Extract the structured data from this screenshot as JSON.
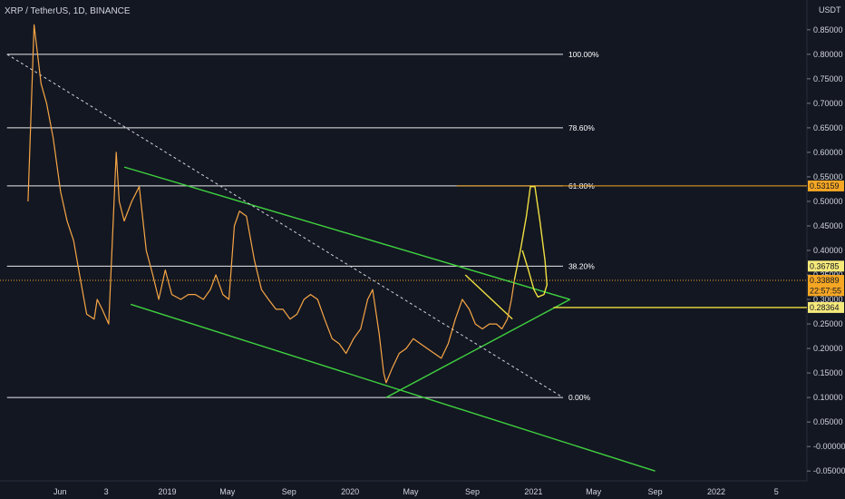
{
  "chart_data": {
    "type": "line",
    "title": "XRP / TetherUS, 1D, BINANCE",
    "price_scale_unit": "USDT",
    "ylim": [
      -0.07,
      0.87
    ],
    "y_ticks": [
      0.85,
      0.8,
      0.75,
      0.7,
      0.65,
      0.6,
      0.55,
      0.5,
      0.45,
      0.4,
      0.35,
      0.3,
      0.25,
      0.2,
      0.15,
      0.1,
      0.05,
      -0.0,
      -0.05
    ],
    "y_tick_labels": [
      "0.85000",
      "0.80000",
      "0.75000",
      "0.70000",
      "0.65000",
      "0.60000",
      "0.55000",
      "0.50000",
      "0.45000",
      "0.40000",
      "0.35000",
      "0.30000",
      "0.25000",
      "0.20000",
      "0.15000",
      "0.10000",
      "0.05000",
      "-0.00000",
      "-0.05000"
    ],
    "x_ticks": [
      "2018-06-01",
      "2018-09-01",
      "2019-01-01",
      "2019-05-01",
      "2019-09-01",
      "2020-01-01",
      "2020-05-01",
      "2020-09-01",
      "2021-01-01",
      "2021-05-01",
      "2021-09-01",
      "2022-01-01",
      "2022-05-01"
    ],
    "x_tick_labels": [
      "Jun",
      "3",
      "2019",
      "May",
      "Sep",
      "2020",
      "May",
      "Sep",
      "2021",
      "May",
      "Sep",
      "2022",
      "5"
    ],
    "xlim": [
      "2018-02-01",
      "2022-07-01"
    ],
    "price_series": {
      "name": "",
      "x": [
        "2018-03-29",
        "2018-04-10",
        "2018-04-24",
        "2018-05-05",
        "2018-05-18",
        "2018-06-02",
        "2018-06-15",
        "2018-06-28",
        "2018-07-10",
        "2018-07-24",
        "2018-08-08",
        "2018-08-14",
        "2018-08-24",
        "2018-09-06",
        "2018-09-21",
        "2018-09-27",
        "2018-10-07",
        "2018-10-22",
        "2018-11-06",
        "2018-11-20",
        "2018-12-03",
        "2018-12-15",
        "2018-12-28",
        "2019-01-10",
        "2019-01-28",
        "2019-02-12",
        "2019-02-26",
        "2019-03-14",
        "2019-03-28",
        "2019-04-08",
        "2019-04-22",
        "2019-05-04",
        "2019-05-15",
        "2019-05-25",
        "2019-06-08",
        "2019-06-24",
        "2019-07-08",
        "2019-07-22",
        "2019-08-06",
        "2019-08-20",
        "2019-09-03",
        "2019-09-17",
        "2019-10-01",
        "2019-10-14",
        "2019-10-28",
        "2019-11-11",
        "2019-11-26",
        "2019-12-10",
        "2019-12-24",
        "2020-01-08",
        "2020-01-22",
        "2020-02-05",
        "2020-02-15",
        "2020-02-28",
        "2020-03-08",
        "2020-03-13",
        "2020-03-25",
        "2020-04-08",
        "2020-04-22",
        "2020-05-06",
        "2020-05-20",
        "2020-06-03",
        "2020-06-17",
        "2020-07-01",
        "2020-07-15",
        "2020-07-29",
        "2020-08-12",
        "2020-08-26",
        "2020-09-07",
        "2020-09-21",
        "2020-10-05",
        "2020-10-19",
        "2020-10-30",
        "2020-11-10",
        "2020-11-18",
        "2020-11-24"
      ],
      "y": [
        0.5,
        0.86,
        0.74,
        0.7,
        0.63,
        0.52,
        0.46,
        0.42,
        0.35,
        0.27,
        0.26,
        0.3,
        0.28,
        0.25,
        0.6,
        0.5,
        0.46,
        0.5,
        0.53,
        0.4,
        0.35,
        0.3,
        0.36,
        0.31,
        0.3,
        0.31,
        0.31,
        0.3,
        0.32,
        0.35,
        0.31,
        0.3,
        0.45,
        0.48,
        0.47,
        0.38,
        0.32,
        0.3,
        0.28,
        0.28,
        0.26,
        0.27,
        0.3,
        0.31,
        0.3,
        0.26,
        0.22,
        0.21,
        0.19,
        0.22,
        0.24,
        0.3,
        0.32,
        0.23,
        0.15,
        0.13,
        0.16,
        0.19,
        0.2,
        0.22,
        0.21,
        0.2,
        0.19,
        0.18,
        0.21,
        0.26,
        0.3,
        0.28,
        0.25,
        0.24,
        0.25,
        0.25,
        0.24,
        0.26,
        0.3,
        0.34
      ],
      "color": "#f7a645"
    },
    "fib_levels": [
      {
        "label": "100.00%",
        "price": 0.8
      },
      {
        "label": "78.60%",
        "price": 0.65
      },
      {
        "label": "61.80%",
        "price": 0.5315
      },
      {
        "label": "38.20%",
        "price": 0.3679
      },
      {
        "label": "0.00%",
        "price": 0.1
      }
    ],
    "price_tags": [
      {
        "label": "0.53159",
        "price": 0.5315,
        "color": "#f5a623"
      },
      {
        "label": "0.36785",
        "price": 0.3679,
        "color": "#f5e97a"
      },
      {
        "label": "0.33889",
        "price": 0.3389,
        "color": "#f5a623"
      },
      {
        "label": "22:57:55",
        "price": 0.318,
        "color": "#f5a623"
      },
      {
        "label": "0.28364",
        "price": 0.2836,
        "color": "#f5e97a"
      }
    ],
    "trendlines": [
      {
        "name": "channel-top",
        "color": "#3fd13f",
        "points": [
          [
            "2018-10-07",
            0.57
          ],
          [
            "2021-03-15",
            0.3
          ]
        ]
      },
      {
        "name": "channel-bottom",
        "color": "#3fd13f",
        "points": [
          [
            "2018-10-20",
            0.29
          ],
          [
            "2021-09-01",
            -0.05
          ]
        ]
      },
      {
        "name": "support-rising",
        "color": "#3fd13f",
        "points": [
          [
            "2020-03-13",
            0.1
          ],
          [
            "2021-03-15",
            0.3
          ]
        ]
      },
      {
        "name": "dashed-downtrend",
        "color": "#d1d4dc",
        "points": [
          [
            "2018-02-15",
            0.8
          ],
          [
            "2021-03-01",
            0.1
          ]
        ]
      },
      {
        "name": "flag-upper",
        "color": "#f0e040",
        "points": [
          [
            "2020-08-18",
            0.35
          ],
          [
            "2020-11-20",
            0.26
          ]
        ]
      },
      {
        "name": "horizontal-0.2836",
        "color": "#f0e040",
        "points": [
          [
            "2021-02-10",
            0.2836
          ],
          [
            "2022-07-01",
            0.2836
          ]
        ]
      }
    ]
  }
}
